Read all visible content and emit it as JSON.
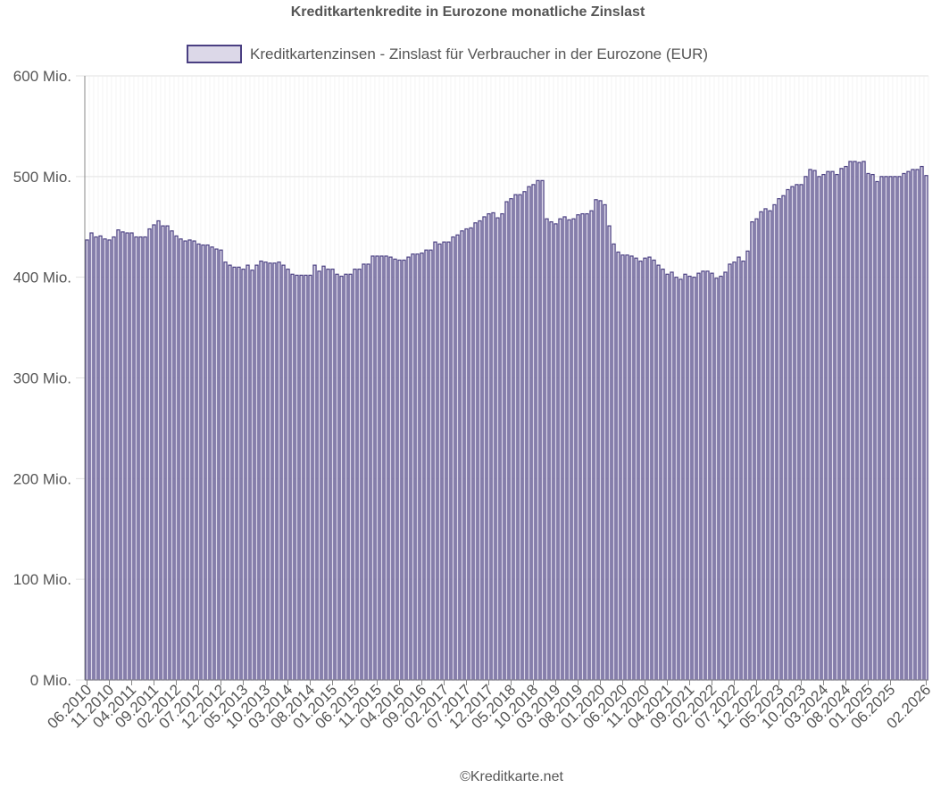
{
  "chart_data": {
    "type": "bar",
    "title": "Kreditkartenkredite in Eurozone monatliche Zinslast",
    "legend_position": "top",
    "grid": true,
    "ylim": [
      0,
      600000000
    ],
    "y_ticks": [
      "0 Mio.",
      "100 Mio.",
      "200 Mio.",
      "300 Mio.",
      "400 Mio.",
      "500 Mio.",
      "600 Mio."
    ],
    "x_tick_labels": [
      "06.2010",
      "11.2010",
      "04.2011",
      "09.2011",
      "02.2012",
      "07.2012",
      "12.2012",
      "05.2013",
      "10.2013",
      "03.2014",
      "08.2014",
      "01.2015",
      "06.2015",
      "11.2015",
      "04.2016",
      "09.2016",
      "02.2017",
      "07.2017",
      "12.2017",
      "05.2018",
      "10.2018",
      "03.2019",
      "08.2019",
      "01.2020",
      "06.2020",
      "11.2020",
      "04.2021",
      "09.2021",
      "02.2022",
      "07.2022",
      "12.2022",
      "05.2023",
      "10.2023",
      "03.2024",
      "08.2024",
      "01.2025",
      "06.2025",
      "02.2026"
    ],
    "first_month": "06.2010",
    "last_month": "02.2026",
    "series": [
      {
        "name": "Kreditkartenzinsen - Zinslast für Verbraucher in der Eurozone (EUR)",
        "fill": "#dcd8e8",
        "stroke": "#4a3f82",
        "values_mio": [
          437,
          444,
          440,
          441,
          438,
          437,
          440,
          447,
          445,
          444,
          444,
          440,
          440,
          440,
          448,
          452,
          456,
          451,
          451,
          446,
          441,
          438,
          436,
          437,
          436,
          433,
          432,
          432,
          430,
          428,
          427,
          415,
          412,
          410,
          410,
          408,
          412,
          407,
          412,
          416,
          415,
          414,
          414,
          415,
          412,
          408,
          403,
          402,
          402,
          402,
          402,
          412,
          406,
          411,
          408,
          408,
          403,
          401,
          403,
          403,
          408,
          408,
          413,
          413,
          421,
          421,
          421,
          421,
          420,
          418,
          417,
          417,
          420,
          423,
          423,
          424,
          427,
          427,
          435,
          433,
          435,
          435,
          440,
          442,
          446,
          448,
          449,
          454,
          456,
          460,
          463,
          464,
          459,
          463,
          475,
          478,
          482,
          482,
          485,
          490,
          492,
          496,
          496,
          458,
          455,
          453,
          458,
          460,
          457,
          458,
          462,
          463,
          463,
          466,
          477,
          476,
          472,
          451,
          433,
          425,
          422,
          422,
          421,
          419,
          416,
          419,
          420,
          417,
          412,
          408,
          403,
          405,
          400,
          398,
          403,
          401,
          400,
          404,
          406,
          406,
          404,
          399,
          401,
          405,
          413,
          415,
          420,
          416,
          426,
          455,
          458,
          465,
          468,
          466,
          472,
          478,
          481,
          487,
          490,
          492,
          492,
          500,
          507,
          506,
          500,
          502,
          505,
          505,
          502,
          508,
          510,
          515,
          515,
          514,
          515,
          503,
          502,
          495,
          500,
          500,
          500,
          500,
          500,
          503,
          505,
          507,
          507,
          510,
          501
        ]
      }
    ]
  },
  "footer": "©Kreditkarte.net"
}
